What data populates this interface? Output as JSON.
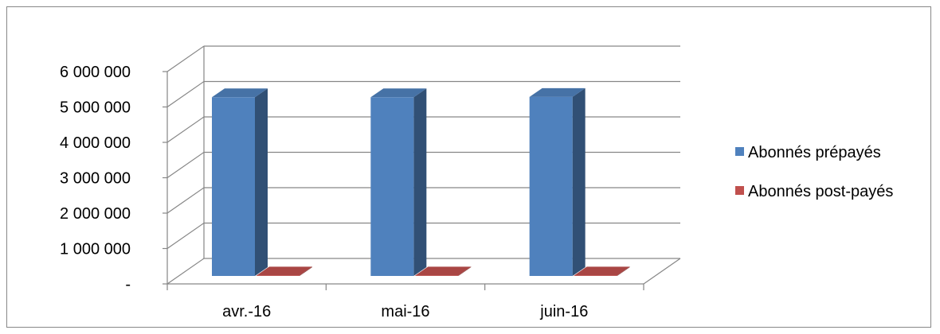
{
  "chart_data": {
    "type": "bar",
    "categories": [
      "avr.-16",
      "mai-16",
      "juin-16"
    ],
    "series": [
      {
        "name": "Abonnés prépayés",
        "values": [
          5050000,
          5050000,
          5060000
        ],
        "color": "#4F81BD"
      },
      {
        "name": "Abonnés post-payés",
        "values": [
          15000,
          15000,
          15000
        ],
        "color": "#C0504D"
      }
    ],
    "ylim": [
      0,
      6000000
    ],
    "y_ticks": [
      {
        "value": 0,
        "label": "-"
      },
      {
        "value": 1000000,
        "label": "1 000 000"
      },
      {
        "value": 2000000,
        "label": "2 000 000"
      },
      {
        "value": 3000000,
        "label": "3 000 000"
      },
      {
        "value": 4000000,
        "label": "4 000 000"
      },
      {
        "value": 5000000,
        "label": "5 000 000"
      },
      {
        "value": 6000000,
        "label": "6 000 000"
      }
    ],
    "grid": true,
    "three_d": true,
    "legend_position": "right",
    "title": "",
    "xlabel": "",
    "ylabel": ""
  }
}
